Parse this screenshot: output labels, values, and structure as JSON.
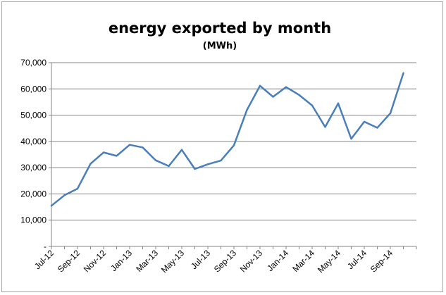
{
  "chart_data": {
    "type": "line",
    "title": "energy exported by month",
    "subtitle": "(MWh)",
    "xlabel": "",
    "ylabel": "",
    "ylim": [
      0,
      70000
    ],
    "y_ticks": [
      {
        "value": 0,
        "label": "-"
      },
      {
        "value": 10000,
        "label": "10,000"
      },
      {
        "value": 20000,
        "label": "20,000"
      },
      {
        "value": 30000,
        "label": "30,000"
      },
      {
        "value": 40000,
        "label": "40,000"
      },
      {
        "value": 50000,
        "label": "50,000"
      },
      {
        "value": 60000,
        "label": "60,000"
      },
      {
        "value": 70000,
        "label": "70,000"
      }
    ],
    "grid": "horizontal",
    "legend": "none",
    "line_color": "#4a7ebb",
    "x": [
      "Jul-12",
      "Aug-12",
      "Sep-12",
      "Oct-12",
      "Nov-12",
      "Dec-12",
      "Jan-13",
      "Feb-13",
      "Mar-13",
      "Apr-13",
      "May-13",
      "Jun-13",
      "Jul-13",
      "Aug-13",
      "Sep-13",
      "Oct-13",
      "Nov-13",
      "Dec-13",
      "Jan-14",
      "Feb-14",
      "Mar-14",
      "Apr-14",
      "May-14",
      "Jun-14",
      "Jul-14",
      "Aug-14",
      "Sep-14",
      "Oct-14"
    ],
    "x_tick_labels": [
      "Jul-12",
      "Sep-12",
      "Nov-12",
      "Jan-13",
      "Mar-13",
      "May-13",
      "Jul-13",
      "Sep-13",
      "Nov-13",
      "Jan-14",
      "Mar-14",
      "May-14",
      "Jul-14",
      "Sep-14"
    ],
    "series": [
      {
        "values": [
          15500,
          19500,
          22000,
          31500,
          35800,
          34500,
          38700,
          37700,
          32800,
          30600,
          36800,
          29500,
          31300,
          32700,
          38500,
          52000,
          61200,
          57000,
          60700,
          57700,
          53700,
          45500,
          54500,
          41000,
          47500,
          45200,
          50700,
          66000
        ]
      }
    ]
  }
}
